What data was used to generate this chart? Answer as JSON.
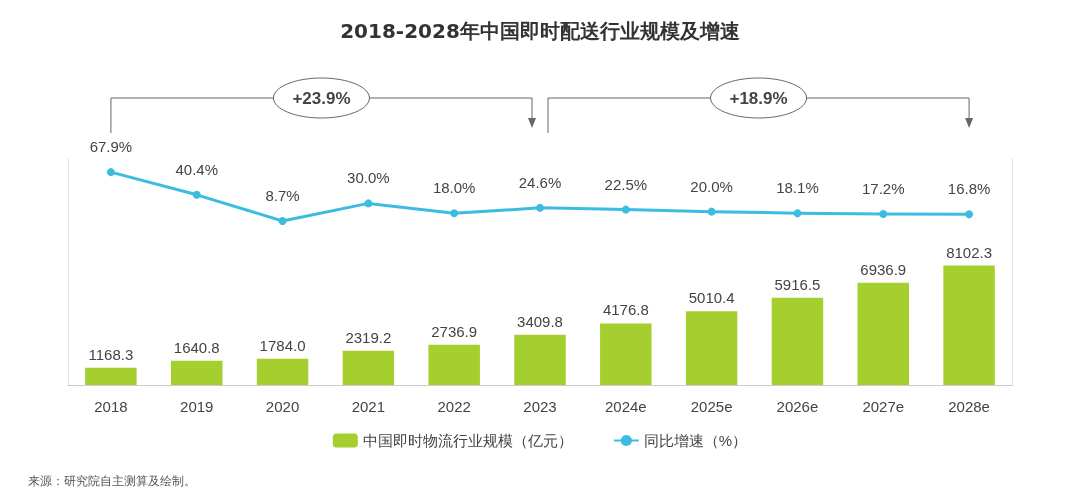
{
  "chart_data": {
    "type": "bar",
    "title": "2018-2028年中国即时配送行业规模及增速",
    "categories": [
      "2018",
      "2019",
      "2020",
      "2021",
      "2022",
      "2023",
      "2024e",
      "2025e",
      "2026e",
      "2027e",
      "2028e"
    ],
    "series": [
      {
        "name": "中国即时物流行业规模（亿元）",
        "color": "#a5cf2f",
        "values": [
          1168.3,
          1640.8,
          1784.0,
          2319.2,
          2736.9,
          3409.8,
          4176.8,
          5010.4,
          5916.5,
          6936.9,
          8102.3
        ],
        "value_labels": [
          "1168.3",
          "1640.8",
          "1784.0",
          "2319.2",
          "2736.9",
          "3409.8",
          "4176.8",
          "5010.4",
          "5916.5",
          "6936.9",
          "8102.3"
        ]
      },
      {
        "name": "同比增速（%）",
        "type": "line",
        "axis": "y2",
        "color": "#3cbde0",
        "values": [
          67.9,
          40.4,
          8.7,
          30.0,
          18.0,
          24.6,
          22.5,
          20.0,
          18.1,
          17.2,
          16.8
        ],
        "value_labels": [
          "67.9%",
          "40.4%",
          "8.7%",
          "30.0%",
          "18.0%",
          "24.6%",
          "22.5%",
          "20.0%",
          "18.1%",
          "17.2%",
          "16.8%"
        ]
      }
    ],
    "ylim": [
      0,
      15400
    ],
    "y2lim": [
      -190,
      85
    ],
    "marker": "circle",
    "legend": "bottom",
    "grid": false,
    "tick_labels": "x",
    "annotations": [
      "+23.9%",
      "+18.9%",
      "来源：研究院自主测算及绘制。"
    ]
  }
}
